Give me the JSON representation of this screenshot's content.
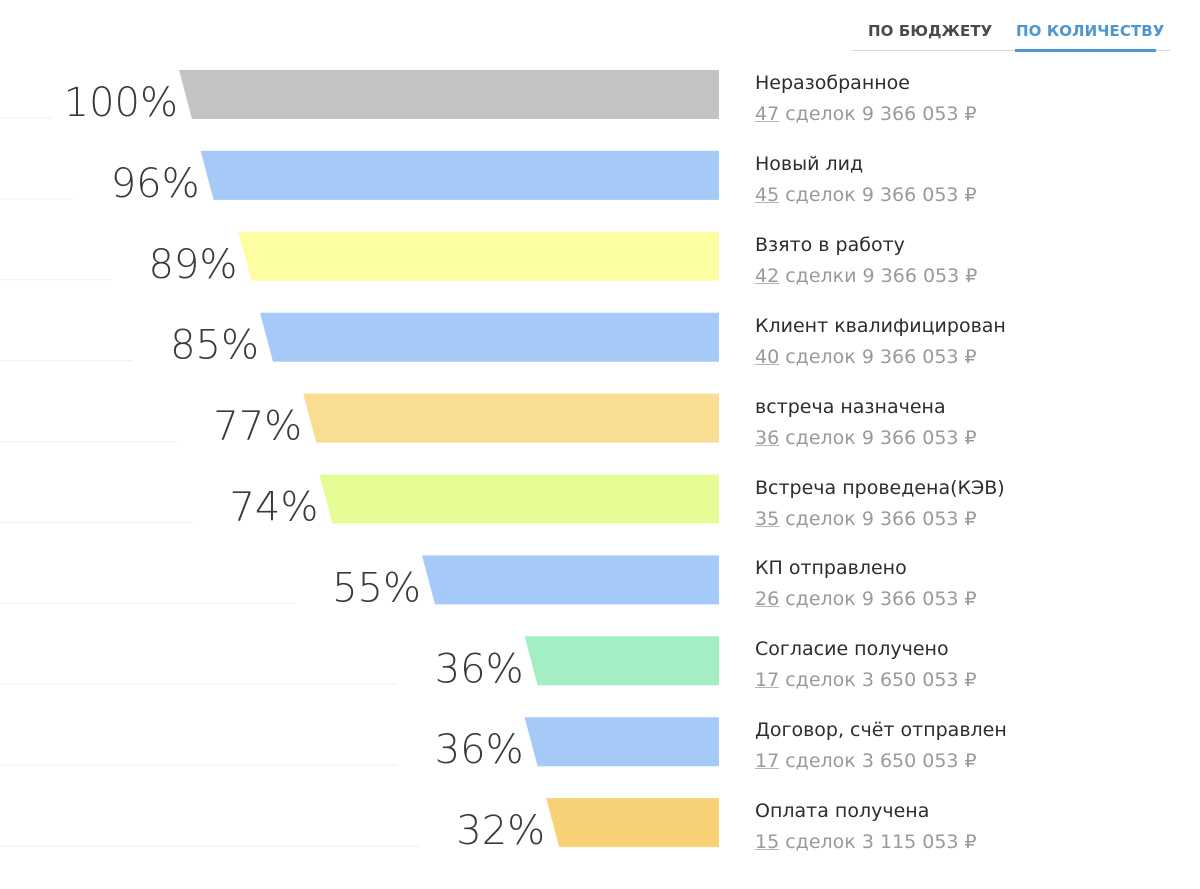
{
  "tabs": {
    "budget_label": "ПО БЮДЖЕТУ",
    "count_label": "ПО КОЛИЧЕСТВУ",
    "active": "count",
    "active_color": "#4d96cf"
  },
  "chart_data": {
    "type": "funnel",
    "title": "",
    "stages": [
      {
        "name": "Неразобранное",
        "percent": 100,
        "percent_label": "100%",
        "deals": 47,
        "deals_word": "сделок",
        "amount": "9 366 053 ₽",
        "color": "#c3c3c3"
      },
      {
        "name": "Новый лид",
        "percent": 96,
        "percent_label": "96%",
        "deals": 45,
        "deals_word": "сделок",
        "amount": "9 366 053 ₽",
        "color": "#a6caf8"
      },
      {
        "name": "Взято в работу",
        "percent": 89,
        "percent_label": "89%",
        "deals": 42,
        "deals_word": "сделки",
        "amount": "9 366 053 ₽",
        "color": "#fdfea2"
      },
      {
        "name": "Клиент квалифицирован",
        "percent": 85,
        "percent_label": "85%",
        "deals": 40,
        "deals_word": "сделок",
        "amount": "9 366 053 ₽",
        "color": "#a6caf8"
      },
      {
        "name": "встреча назначена",
        "percent": 77,
        "percent_label": "77%",
        "deals": 36,
        "deals_word": "сделок",
        "amount": "9 366 053 ₽",
        "color": "#f9dd92"
      },
      {
        "name": "Встреча проведена(КЭВ)",
        "percent": 74,
        "percent_label": "74%",
        "deals": 35,
        "deals_word": "сделок",
        "amount": "9 366 053 ₽",
        "color": "#e6fd95"
      },
      {
        "name": "КП отправлено",
        "percent": 55,
        "percent_label": "55%",
        "deals": 26,
        "deals_word": "сделок",
        "amount": "9 366 053 ₽",
        "color": "#a6caf8"
      },
      {
        "name": "Согласие получено",
        "percent": 36,
        "percent_label": "36%",
        "deals": 17,
        "deals_word": "сделок",
        "amount": "3 650 053 ₽",
        "color": "#a3efc3"
      },
      {
        "name": "Договор, счёт отправлен",
        "percent": 36,
        "percent_label": "36%",
        "deals": 17,
        "deals_word": "сделок",
        "amount": "3 650 053 ₽",
        "color": "#a6caf8"
      },
      {
        "name": "Оплата получена",
        "percent": 32,
        "percent_label": "32%",
        "deals": 15,
        "deals_word": "сделок",
        "amount": "3 115 053 ₽",
        "color": "#f6d176"
      }
    ]
  }
}
